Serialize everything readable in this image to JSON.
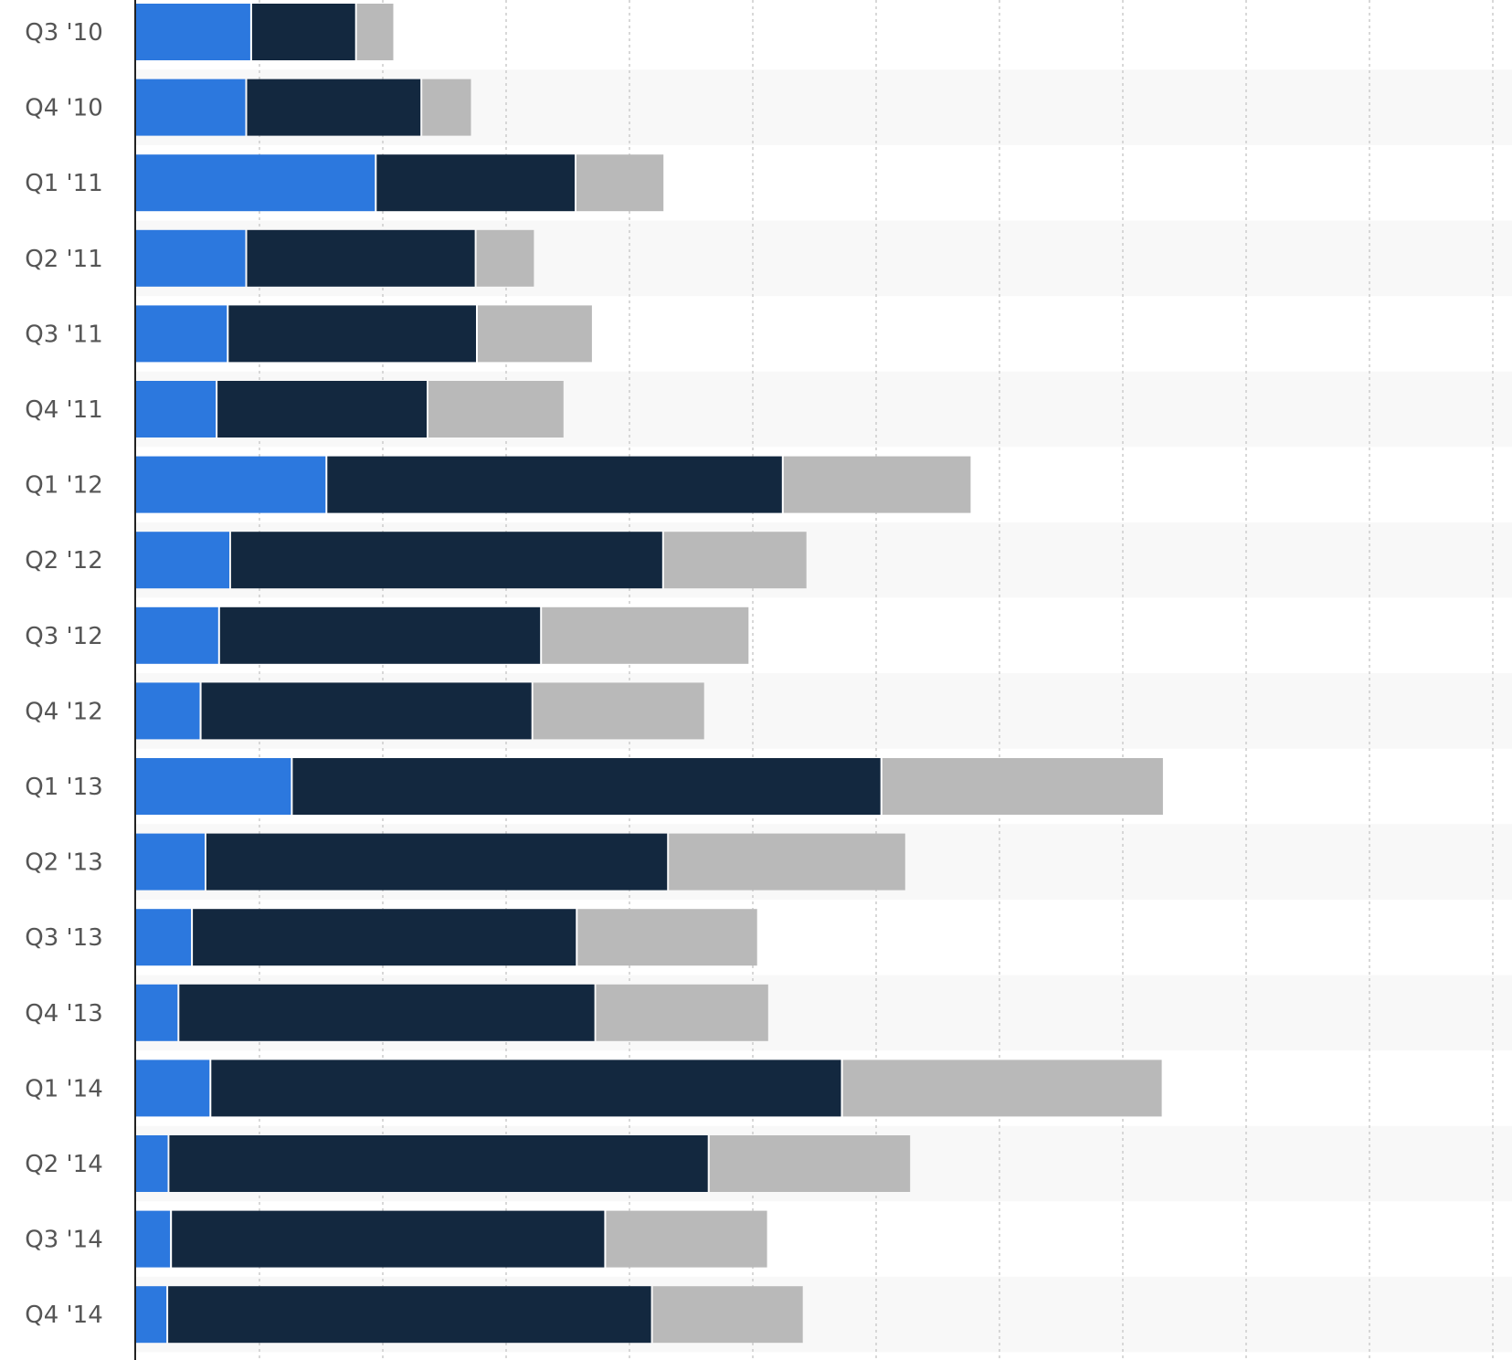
{
  "chart_data": {
    "type": "bar",
    "orientation": "horizontal",
    "stacked": true,
    "categories": [
      "Q3 '10",
      "Q4 '10",
      "Q1 '11",
      "Q2 '11",
      "Q3 '11",
      "Q4 '11",
      "Q1 '12",
      "Q2 '12",
      "Q3 '12",
      "Q4 '12",
      "Q1 '13",
      "Q2 '13",
      "Q3 '13",
      "Q4 '13",
      "Q1 '14",
      "Q2 '14",
      "Q3 '14",
      "Q4 '14"
    ],
    "series": [
      {
        "color": "#2c78de",
        "values": [
          9.4,
          9.0,
          19.5,
          9.0,
          7.5,
          6.6,
          15.5,
          7.7,
          6.8,
          5.3,
          12.7,
          5.7,
          4.6,
          3.5,
          6.1,
          2.7,
          2.9,
          2.6
        ]
      },
      {
        "color": "#13283f",
        "values": [
          8.5,
          14.2,
          16.2,
          18.6,
          20.2,
          17.1,
          37.0,
          35.1,
          26.1,
          26.9,
          47.8,
          37.5,
          31.2,
          33.8,
          51.2,
          43.8,
          35.2,
          39.3
        ]
      },
      {
        "color": "#b9b9b9",
        "values": [
          3.1,
          4.1,
          7.2,
          4.8,
          9.4,
          11.1,
          15.3,
          11.7,
          16.9,
          14.0,
          22.9,
          19.3,
          14.7,
          14.1,
          26.0,
          16.4,
          13.2,
          12.3
        ]
      }
    ],
    "xlim": [
      0,
      110
    ],
    "grid": {
      "vertical_dotted": true,
      "alternating_row_bands": true
    }
  }
}
